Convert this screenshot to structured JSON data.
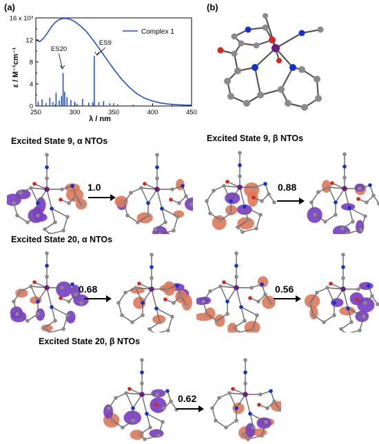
{
  "panels": {
    "a_label": "(a)",
    "b_label": "(b)"
  },
  "chart_data": {
    "type": "line",
    "xlabel": "λ / nm",
    "ylabel": "ε / M⁻¹cm⁻¹",
    "xlim": [
      250,
      450
    ],
    "ylim": [
      0,
      16000
    ],
    "x_ticks": [
      "250",
      "300",
      "350",
      "400",
      "450"
    ],
    "y_ticks": [
      "0",
      "4",
      "8",
      "12",
      "16 x 10³"
    ],
    "legend": {
      "placement": "top-right",
      "entries": [
        "Complex 1"
      ]
    },
    "series": [
      {
        "name": "Complex 1",
        "color": "#1f4fdc",
        "x": [
          250,
          255,
          260,
          265,
          270,
          275,
          280,
          285,
          290,
          295,
          300,
          305,
          310,
          315,
          320,
          325,
          330,
          335,
          340,
          345,
          350,
          360,
          370,
          380,
          390,
          400,
          410,
          420,
          430,
          440,
          450
        ],
        "y": [
          12000,
          11700,
          12300,
          13300,
          14400,
          15200,
          15700,
          15900,
          15900,
          15700,
          15300,
          14800,
          14200,
          13500,
          12600,
          11700,
          10700,
          9700,
          8700,
          7700,
          6700,
          4900,
          3400,
          2200,
          1400,
          900,
          550,
          350,
          250,
          180,
          150
        ]
      }
    ],
    "sticks": {
      "color": "#1f4fdc",
      "x": [
        253,
        258,
        263,
        268,
        272,
        276,
        280,
        283,
        285,
        287,
        290,
        295,
        300,
        303,
        310,
        318,
        323,
        325,
        331,
        337,
        345,
        355
      ],
      "y": [
        800,
        1200,
        500,
        1500,
        700,
        2400,
        1000,
        1800,
        6000,
        2600,
        1600,
        1100,
        800,
        400,
        1300,
        600,
        700,
        9100,
        700,
        900,
        500,
        300
      ]
    },
    "annotations": [
      {
        "text": "ES20",
        "x": 285,
        "y": 6000
      },
      {
        "text": "ES9",
        "x": 325,
        "y": 9100
      }
    ]
  },
  "nto": {
    "sections": [
      {
        "title": "Excited State 9, α NTOs",
        "value": "1.0"
      },
      {
        "title": "Excited State 9, β NTOs",
        "value": "0.88"
      },
      {
        "title": "Excited State 20, α NTOs",
        "value": "0.68"
      },
      {
        "title": "Excited State 20, β NTOs",
        "value": "0.56"
      },
      {
        "title": "Excited State 20, β NTOs",
        "value": "0.62"
      }
    ]
  },
  "colors": {
    "carbon": "#8a8a8a",
    "nitrogen": "#1230d8",
    "oxygen": "#d8261c",
    "metal": "#6b1d82",
    "lobe_purple": "#7a3ec4",
    "lobe_orange": "#e07a5a",
    "axis": "#000000"
  }
}
